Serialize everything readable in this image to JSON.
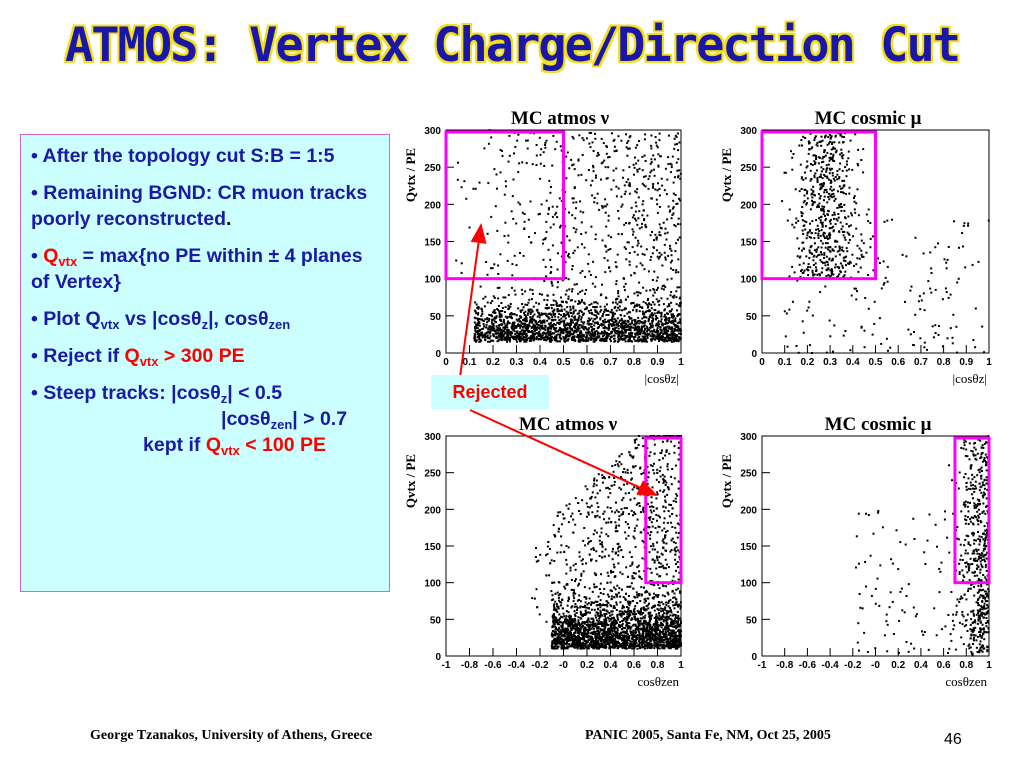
{
  "title": "ATMOS: Vertex Charge/Direction Cut",
  "bullets": {
    "b1": "• After the topology cut S:B = 1:5",
    "b2_text": "Remaining BGND: CR muon  tracks poorly reconstructed",
    "b2_tail": ".",
    "b3_q": "Q",
    "b3_sub": "vtx",
    "b3_rest": " = max{no PE within ± 4 planes of Vertex}",
    "b4_pre": "• Plot Q",
    "b4_sub": "vtx",
    "b4_mid": " vs |cosθ",
    "b4_sub2": "z",
    "b4_mid2": "|, cosθ",
    "b4_sub3": "zen",
    "b5_pre": "• Reject if ",
    "b5_q": "Q",
    "b5_sub": "vtx",
    "b5_rest": " > 300 PE",
    "b6_pre": "• Steep tracks: |cosθ",
    "b6_sub": "z",
    "b6_rest": "| < 0.5",
    "b7_pre": "|cosθ",
    "b7_sub": "zen",
    "b7_rest": "| > 0.7",
    "b8_pre": "kept if ",
    "b8_q": "Q",
    "b8_sub": "vtx",
    "b8_rest": " < 100 PE"
  },
  "rejected_label": "Rejected",
  "footer": {
    "left": "George Tzanakos, University of Athens, Greece",
    "right": "PANIC 2005, Santa Fe, NM, Oct 25, 2005",
    "page": "46"
  },
  "colors": {
    "title": "#1a16a8",
    "title_outline": "#f2de1c",
    "cut_box": "#ff00ff",
    "arrow": "#ff0000",
    "highlight": "#ff0000",
    "panel_bg": "#ccffff"
  },
  "chart_data": [
    {
      "type": "scatter",
      "title": "MC atmos ν",
      "xlabel": "|cosθz|",
      "ylabel": "Qvtx / PE",
      "xlim": [
        0,
        1
      ],
      "ylim": [
        0,
        300
      ],
      "xticks": [
        "0",
        "0.1",
        "0.2",
        "0.3",
        "0.4",
        "0.5",
        "0.6",
        "0.7",
        "0.8",
        "0.9",
        "1"
      ],
      "yticks": [
        "0",
        "50",
        "100",
        "150",
        "200",
        "250",
        "300"
      ],
      "cut_box": {
        "x": [
          0,
          0.5
        ],
        "y": [
          100,
          300
        ]
      },
      "distribution": "dense band below 100 PE across all |cosθz|, sparser up to 300 PE"
    },
    {
      "type": "scatter",
      "title": "MC cosmic μ",
      "xlabel": "|cosθz|",
      "ylabel": "Qvtx / PE",
      "xlim": [
        0,
        1
      ],
      "ylim": [
        0,
        300
      ],
      "xticks": [
        "0",
        "0.1",
        "0.2",
        "0.3",
        "0.4",
        "0.5",
        "0.6",
        "0.7",
        "0.8",
        "0.9",
        "1"
      ],
      "yticks": [
        "0",
        "50",
        "100",
        "150",
        "200",
        "250",
        "300"
      ],
      "cut_box": {
        "x": [
          0,
          0.5
        ],
        "y": [
          100,
          300
        ]
      },
      "distribution": "concentrated at |cosθz| 0.1–0.45 across 100–300 PE, sparse elsewhere"
    },
    {
      "type": "scatter",
      "title": "MC atmos ν",
      "xlabel": "cosθzen",
      "ylabel": "Qvtx / PE",
      "xlim": [
        -1,
        1
      ],
      "ylim": [
        0,
        300
      ],
      "xticks": [
        "-1",
        "-0.8",
        "-0.6",
        "-0.4",
        "-0.2",
        "-0",
        "0.2",
        "0.4",
        "0.6",
        "0.8",
        "1"
      ],
      "yticks": [
        "0",
        "50",
        "100",
        "150",
        "200",
        "250",
        "300"
      ],
      "cut_box": {
        "x": [
          0.7,
          1
        ],
        "y": [
          100,
          300
        ]
      },
      "distribution": "dense below 100 PE for cosθzen > -0.2, spreading upward toward cosθzen = 1"
    },
    {
      "type": "scatter",
      "title": "MC cosmic μ",
      "xlabel": "cosθzen",
      "ylabel": "Qvtx / PE",
      "xlim": [
        -1,
        1
      ],
      "ylim": [
        0,
        300
      ],
      "xticks": [
        "-1",
        "-0.8",
        "-0.6",
        "-0.4",
        "-0.2",
        "-0",
        "0.2",
        "0.4",
        "0.6",
        "0.8",
        "1"
      ],
      "yticks": [
        "0",
        "50",
        "100",
        "150",
        "200",
        "250",
        "300"
      ],
      "cut_box": {
        "x": [
          0.7,
          1
        ],
        "y": [
          100,
          300
        ]
      },
      "distribution": "concentrated at cosθzen 0.7–1 over all Qvtx, sparse toward lower cosθzen"
    }
  ]
}
